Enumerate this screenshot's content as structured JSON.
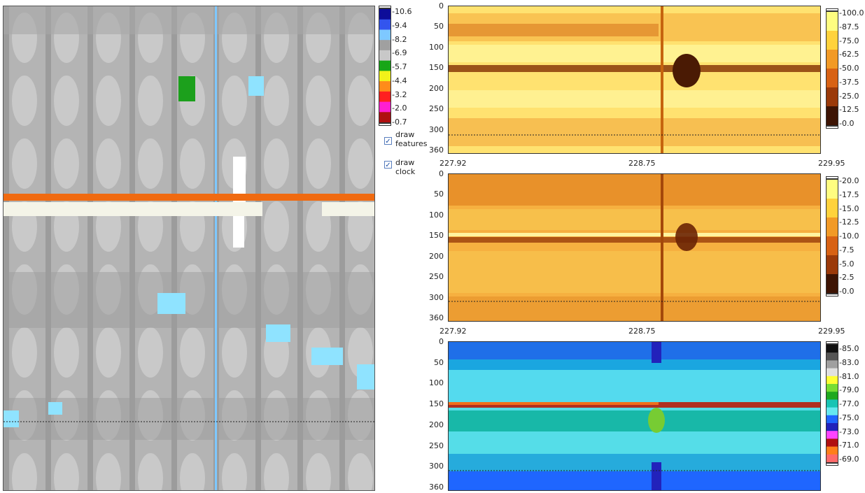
{
  "left_panel": {
    "legend": {
      "labels": [
        "10.6",
        "9.4",
        "8.2",
        "6.9",
        "5.7",
        "4.4",
        "3.2",
        "2.0",
        "0.7"
      ],
      "colors": [
        "#0d0d99",
        "#3355ee",
        "#7ec8ff",
        "#a0a0a0",
        "#c8c8c8",
        "#17a617",
        "#f2f21a",
        "#ff8c1a",
        "#ff2020",
        "#ff1fd0",
        "#b01010"
      ]
    },
    "checkboxes": [
      {
        "label_line1": "draw",
        "label_line2": "features",
        "checked": true,
        "mark": "✓"
      },
      {
        "label_line1": "draw",
        "label_line2": "clock",
        "checked": true,
        "mark": "✓"
      }
    ]
  },
  "plot1": {
    "y_ticks": [
      "0",
      "50",
      "100",
      "150",
      "200",
      "250",
      "300",
      "360"
    ],
    "x_ticks": [
      "227.92",
      "228.75",
      "229.95"
    ],
    "scale_labels": [
      "100.0",
      "87.5",
      "75.0",
      "62.5",
      "50.0",
      "37.5",
      "25.0",
      "12.5",
      "0.0"
    ],
    "colors": [
      "#fffd80",
      "#ffd23c",
      "#f29a26",
      "#d86214",
      "#9b3a0a",
      "#3d1404"
    ]
  },
  "plot2": {
    "y_ticks": [
      "0",
      "50",
      "100",
      "150",
      "200",
      "250",
      "300",
      "360"
    ],
    "x_ticks": [
      "227.92",
      "228.75",
      "229.95"
    ],
    "scale_labels": [
      "20.0",
      "17.5",
      "15.0",
      "12.5",
      "10.0",
      "7.5",
      "5.0",
      "2.5",
      "0.0"
    ],
    "colors": [
      "#fffd80",
      "#ffd23c",
      "#f29a26",
      "#d86214",
      "#9b3a0a",
      "#3d1404"
    ]
  },
  "plot3": {
    "y_ticks": [
      "0",
      "50",
      "100",
      "150",
      "200",
      "250",
      "300",
      "360"
    ],
    "scale_labels": [
      "85.0",
      "83.0",
      "81.0",
      "79.0",
      "77.0",
      "75.0",
      "73.0",
      "71.0",
      "69.0"
    ],
    "colors": [
      "#111111",
      "#555555",
      "#a0a0a0",
      "#e0e0e0",
      "#ffff33",
      "#77dd33",
      "#1fa81f",
      "#18c4b4",
      "#66e8f0",
      "#1f66ff",
      "#2222bb",
      "#ff44ff",
      "#b01010",
      "#ff7f1a",
      "#ff6a6a"
    ]
  }
}
